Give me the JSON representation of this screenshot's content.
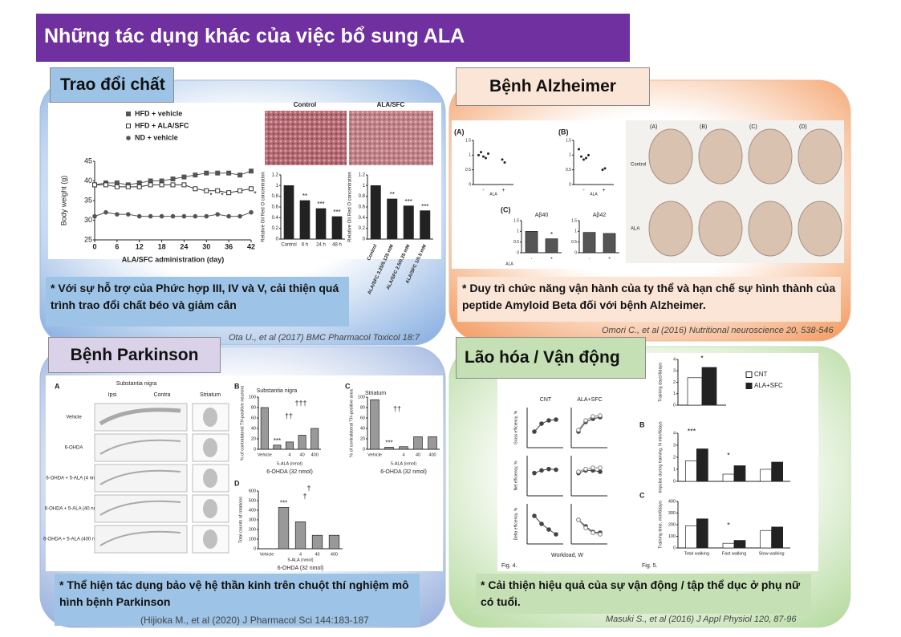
{
  "title": "Những tác dụng khác của việc bổ sung ALA",
  "panels": [
    {
      "heading": "Trao đổi chất",
      "caption": "* Với sự hỗ trợ của Phức hợp III, IV và V, cải thiện quá trình trao đổi chất béo và giảm cân",
      "citation": "Ota U., et al (2017) BMC Pharmacol Toxicol 18:7",
      "image_labels": [
        "Control",
        "ALA/SFC"
      ],
      "charts": [
        {
          "type": "line",
          "xlabel": "ALA/SFC administration (day)",
          "ylabel": "Body weight (g)",
          "x": [
            0,
            3,
            6,
            9,
            12,
            15,
            18,
            21,
            24,
            27,
            30,
            33,
            36,
            39,
            42
          ],
          "xlim": [
            0,
            42
          ],
          "xticks": [
            0,
            6,
            12,
            18,
            24,
            30,
            36,
            42
          ],
          "ylim": [
            25,
            45
          ],
          "yticks": [
            25,
            30,
            35,
            40,
            45
          ],
          "series": [
            {
              "name": "HFD + vehicle",
              "color": "#555555",
              "marker": "filled-square",
              "values": [
                39,
                39.5,
                39.5,
                39,
                39.5,
                40,
                40,
                40.5,
                41,
                41.5,
                42,
                42,
                42,
                41.5,
                42.5
              ]
            },
            {
              "name": "HFD + ALA/SFC",
              "color": "#333333",
              "marker": "open-square",
              "values": [
                39,
                39,
                38.5,
                38.5,
                38.5,
                39,
                39,
                39,
                39,
                38,
                37.5,
                37.5,
                37,
                37.5,
                38
              ]
            },
            {
              "name": "ND + vehicle",
              "color": "#555555",
              "marker": "filled-circle",
              "values": [
                31,
                32,
                31.5,
                31.5,
                31,
                31,
                31,
                31,
                31,
                31,
                31,
                31.5,
                31,
                31,
                32
              ]
            }
          ],
          "annotations": [
            "*",
            "*",
            "*"
          ]
        },
        {
          "type": "bar",
          "ylabel": "Relative Oil Red O concentration",
          "categories": [
            "Control",
            "6 h",
            "24 h",
            "48 h"
          ],
          "values": [
            1,
            0.72,
            0.57,
            0.42
          ],
          "color": "#222222",
          "ylim": [
            0,
            1.2
          ],
          "yticks": [
            0,
            0.2,
            0.4,
            0.6,
            0.8,
            1,
            1.2
          ],
          "significance": [
            null,
            "**",
            "***",
            "***"
          ]
        },
        {
          "type": "bar",
          "ylabel": "Relative Oil Red O concentration",
          "categories": [
            "Control",
            "ALA/SFC 3.25/5.125 mM",
            "ALA/SFC 2.5/0.25 mM",
            "ALA/SFC 1/0.5 mM"
          ],
          "values": [
            1,
            0.75,
            0.62,
            0.53
          ],
          "color": "#222222",
          "ylim": [
            0,
            1.2
          ],
          "yticks": [
            0,
            0.2,
            0.4,
            0.6,
            0.8,
            1,
            1.2
          ],
          "significance": [
            null,
            "**",
            "***",
            "***"
          ]
        }
      ]
    },
    {
      "heading": "Bệnh Alzheimer",
      "caption": "* Duy trì chức năng vận hành của ty thể và hạn chế sự hình thành của peptide Amyloid Beta đối với bệnh Alzheimer.",
      "citation": "Omori C., et al (2016) Nutritional neuroscience 20, 538-546",
      "image_labels": [
        "(A)",
        "(B)",
        "(C)",
        "(D)"
      ],
      "row_labels": [
        "Control",
        "ALA"
      ],
      "charts": [
        {
          "type": "strip",
          "label": "(A)",
          "xlabel": "ALA",
          "categories": [
            "-",
            "+"
          ],
          "values": [
            [
              1.0,
              1.1,
              0.95,
              0.9,
              1.05
            ],
            [
              0.85,
              0.75
            ]
          ],
          "ylim": [
            0,
            1.5
          ],
          "yticks": [
            0,
            0.5,
            1,
            1.5
          ]
        },
        {
          "type": "strip",
          "label": "(B)",
          "xlabel": "ALA",
          "categories": [
            "-",
            "+"
          ],
          "values": [
            [
              1.2,
              0.95,
              0.85,
              0.9,
              1.0
            ],
            [
              0.5,
              0.55
            ]
          ],
          "ylim": [
            0,
            1.5
          ],
          "yticks": [
            0,
            0.5,
            1,
            1.5
          ]
        },
        {
          "type": "bar",
          "label": "(C)",
          "title": "Aβ40",
          "xlabel": "ALA",
          "categories": [
            "-",
            "+"
          ],
          "values": [
            1,
            0.65
          ],
          "color": "#555555",
          "ylim": [
            0,
            1.5
          ],
          "yticks": [
            0,
            0.5,
            1,
            1.5
          ],
          "significance": [
            null,
            "*"
          ]
        },
        {
          "type": "bar",
          "title": "Aβ42",
          "categories": [
            "-",
            "+"
          ],
          "values": [
            0.95,
            0.9
          ],
          "color": "#555555",
          "ylim": [
            0,
            1.5
          ],
          "yticks": [
            0,
            0.5,
            1,
            1.5
          ]
        }
      ]
    },
    {
      "heading": "Bệnh Parkinson",
      "caption": "* Thể hiện tác dụng bảo vệ hệ thần kinh trên chuột thí nghiệm mô hình bệnh Parkinson",
      "citation": "(Hijioka M., et al (2020) J Pharmacol Sci 144:183-187",
      "image_grid": {
        "label": "A",
        "title": "Substantia nigra",
        "columns": [
          "Ipsi",
          "Contra",
          "Striatum"
        ],
        "rows": [
          "Vehicle",
          "6-OHDA",
          "6-OHDA + 5-ALA (4 nmol)",
          "6-OHDA + 5-ALA (40 nmol)",
          "6-OHDA + 5-ALA (400 nmol)"
        ]
      },
      "charts": [
        {
          "type": "bar",
          "label": "B",
          "title": "Substantia nigra",
          "ylabel": "% of contralateral TH-positive neurons",
          "xlabel": "5-ALA (nmol)",
          "group_label": "6-OHDA (32 nmol)",
          "categories": [
            "Vehicle",
            null,
            "4",
            "40",
            "400"
          ],
          "values": [
            80,
            8,
            14,
            27,
            40
          ],
          "color": "#999999",
          "ylim": [
            0,
            100
          ],
          "yticks": [
            0,
            20,
            40,
            60,
            80,
            100
          ],
          "significance": [
            null,
            "***",
            null,
            null,
            null
          ],
          "annotations": [
            "††",
            "†††"
          ]
        },
        {
          "type": "bar",
          "label": "C",
          "title": "Striatum",
          "ylabel": "% of contralateral TH-positive area",
          "xlabel": "5-ALA (nmol)",
          "group_label": "6-OHDA (32 nmol)",
          "categories": [
            "Vehicle",
            null,
            "4",
            "40",
            "400"
          ],
          "values": [
            95,
            4,
            5,
            24,
            24
          ],
          "color": "#999999",
          "ylim": [
            0,
            100
          ],
          "yticks": [
            0,
            20,
            40,
            60,
            80,
            100
          ],
          "significance": [
            null,
            "***",
            null,
            null,
            null
          ],
          "annotations": [
            "††"
          ]
        },
        {
          "type": "bar",
          "label": "D",
          "ylabel": "Total counts of rotations",
          "xlabel": "5-ALA (nmol)",
          "group_label": "6-OHDA (32 nmol)",
          "categories": [
            "Vehicle",
            null,
            "4",
            "40",
            "400"
          ],
          "values": [
            0,
            430,
            280,
            140,
            140
          ],
          "color": "#999999",
          "ylim": [
            0,
            600
          ],
          "yticks": [
            0,
            100,
            200,
            300,
            400,
            500,
            600
          ],
          "significance": [
            null,
            "***",
            null,
            null,
            null
          ],
          "annotations": [
            "†",
            "†"
          ]
        }
      ]
    },
    {
      "heading": "Lão hóa / Vận động",
      "caption": "* Cải thiện hiệu quả của sự vận động / tập thể dục ở phụ nữ có tuổi.",
      "citation": "Masuki S., et al (2016) J Appl Physiol 120, 87-96",
      "column_labels": [
        "CNT",
        "ALA+SFC"
      ],
      "xlabel": "Workload, W",
      "figure_labels": [
        "Fig. 4.",
        "Fig. 5."
      ],
      "charts": [
        {
          "type": "line",
          "ylabel": "Gross efficiency, %",
          "x": [
            25,
            50,
            75,
            100
          ],
          "xlim": [
            0,
            125
          ],
          "ylim": [
            0,
            25
          ],
          "series": [
            {
              "color": "#444444",
              "marker": "filled-circle",
              "values": [
                10,
                15,
                17,
                17.5
              ]
            }
          ]
        },
        {
          "type": "line",
          "x": [
            25,
            50,
            75,
            100
          ],
          "xlim": [
            0,
            125
          ],
          "ylim": [
            0,
            25
          ],
          "series": [
            {
              "color": "#444444",
              "marker": "filled-circle",
              "values": [
                10,
                16,
                18,
                19
              ]
            },
            {
              "color": "#888888",
              "marker": "open-circle",
              "values": [
                11,
                17,
                19.5,
                20
              ]
            }
          ]
        },
        {
          "type": "line",
          "ylabel": "Net efficiency, %",
          "x": [
            25,
            50,
            75,
            100
          ],
          "xlim": [
            0,
            125
          ],
          "ylim": [
            0,
            30
          ],
          "series": [
            {
              "color": "#444444",
              "marker": "filled-circle",
              "values": [
                17,
                19,
                20,
                19.5
              ]
            }
          ]
        },
        {
          "type": "line",
          "x": [
            25,
            50,
            75,
            100
          ],
          "xlim": [
            0,
            125
          ],
          "ylim": [
            0,
            30
          ],
          "series": [
            {
              "color": "#444444",
              "marker": "filled-circle",
              "values": [
                17,
                19,
                19,
                18
              ]
            },
            {
              "color": "#888888",
              "marker": "open-circle",
              "values": [
                18,
                20,
                21,
                21
              ]
            }
          ]
        },
        {
          "type": "line",
          "ylabel": "Delta efficiency, %",
          "x": [
            25,
            50,
            75,
            100
          ],
          "xlim": [
            0,
            125
          ],
          "ylim": [
            0,
            50
          ],
          "series": [
            {
              "color": "#444444",
              "marker": "filled-circle",
              "values": [
                35,
                25,
                18,
                12
              ]
            }
          ]
        },
        {
          "type": "line",
          "x": [
            25,
            50,
            75,
            100
          ],
          "xlim": [
            0,
            125
          ],
          "ylim": [
            0,
            50
          ],
          "series": [
            {
              "color": "#444444",
              "marker": "filled-circle",
              "values": [
                30,
                22,
                15,
                14
              ]
            },
            {
              "color": "#888888",
              "marker": "open-circle",
              "values": [
                30,
                20,
                14,
                12
              ]
            }
          ]
        },
        {
          "type": "bar",
          "ylabel": "Training days/6days",
          "categories": [
            null
          ],
          "ylim": [
            0,
            4
          ],
          "yticks": [
            0,
            1,
            2,
            3,
            4
          ],
          "series": [
            {
              "name": "CNT",
              "color": "#ffffff",
              "values": [
                2.4
              ]
            },
            {
              "name": "ALA+SFC",
              "color": "#222222",
              "values": [
                3.3
              ]
            }
          ],
          "annotations": [
            "*"
          ]
        },
        {
          "type": "bar",
          "label": "B",
          "ylabel": "Impulse during training, N min/6days",
          "categories": [
            null,
            null,
            null
          ],
          "ylim": [
            0,
            4
          ],
          "yticks": [
            0,
            1,
            2,
            3,
            4
          ],
          "series": [
            {
              "color": "#ffffff",
              "values": [
                1.7,
                0.6,
                1
              ]
            },
            {
              "color": "#222222",
              "values": [
                2.7,
                1.3,
                1.6
              ]
            }
          ],
          "annotations": [
            "***",
            "*"
          ]
        },
        {
          "type": "bar",
          "label": "C",
          "ylabel": "Training time, min/6days",
          "categories": [
            "Total walking",
            "Fast walking",
            "Slow walking"
          ],
          "ylim": [
            0,
            400
          ],
          "yticks": [
            0,
            100,
            200,
            300,
            400
          ],
          "series": [
            {
              "color": "#ffffff",
              "values": [
                190,
                40,
                150
              ]
            },
            {
              "color": "#222222",
              "values": [
                250,
                65,
                180
              ]
            }
          ],
          "annotations": [
            "*"
          ]
        }
      ]
    }
  ]
}
